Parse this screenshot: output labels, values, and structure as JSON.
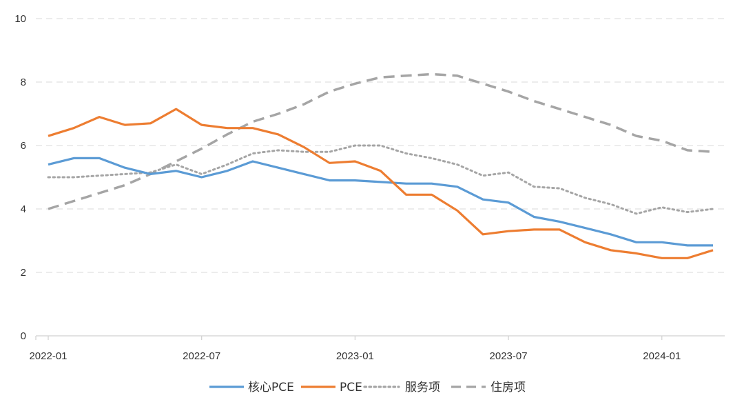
{
  "chart_data": {
    "type": "line",
    "title": "",
    "xlabel": "",
    "ylabel": "",
    "ylim": [
      0,
      10
    ],
    "yticks": [
      0,
      2,
      4,
      6,
      8,
      10
    ],
    "grid": true,
    "legend_position": "bottom",
    "x": [
      "2022-01",
      "2022-02",
      "2022-03",
      "2022-04",
      "2022-05",
      "2022-06",
      "2022-07",
      "2022-08",
      "2022-09",
      "2022-10",
      "2022-11",
      "2022-12",
      "2023-01",
      "2023-02",
      "2023-03",
      "2023-04",
      "2023-05",
      "2023-06",
      "2023-07",
      "2023-08",
      "2023-09",
      "2023-10",
      "2023-11",
      "2023-12",
      "2024-01",
      "2024-02",
      "2024-03"
    ],
    "xtick_labels": [
      {
        "index": 0,
        "label": "2022-01"
      },
      {
        "index": 6,
        "label": "2022-07"
      },
      {
        "index": 12,
        "label": "2023-01"
      },
      {
        "index": 18,
        "label": "2023-07"
      },
      {
        "index": 24,
        "label": "2024-01"
      }
    ],
    "series": [
      {
        "name": "核心PCE",
        "color": "#5b9bd5",
        "style": "solid",
        "values": [
          5.4,
          5.6,
          5.6,
          5.3,
          5.1,
          5.2,
          5.0,
          5.2,
          5.5,
          5.3,
          5.1,
          4.9,
          4.9,
          4.85,
          4.8,
          4.8,
          4.7,
          4.3,
          4.2,
          3.75,
          3.6,
          3.4,
          3.2,
          2.95,
          2.95,
          2.85,
          2.85
        ]
      },
      {
        "name": "PCE",
        "color": "#ed7d31",
        "style": "solid",
        "values": [
          6.3,
          6.55,
          6.9,
          6.65,
          6.7,
          7.15,
          6.65,
          6.55,
          6.55,
          6.35,
          5.95,
          5.45,
          5.5,
          5.2,
          4.45,
          4.45,
          3.95,
          3.2,
          3.3,
          3.35,
          3.35,
          2.95,
          2.7,
          2.6,
          2.45,
          2.45,
          2.7
        ]
      },
      {
        "name": "服务项",
        "color": "#a5a5a5",
        "style": "dotted",
        "values": [
          5.0,
          5.0,
          5.05,
          5.1,
          5.15,
          5.4,
          5.1,
          5.4,
          5.75,
          5.85,
          5.8,
          5.8,
          6.0,
          6.0,
          5.75,
          5.6,
          5.4,
          5.05,
          5.15,
          4.7,
          4.65,
          4.35,
          4.15,
          3.85,
          4.05,
          3.9,
          4.0
        ]
      },
      {
        "name": "住房项",
        "color": "#a5a5a5",
        "style": "dashed",
        "values": [
          4.0,
          4.25,
          4.5,
          4.75,
          5.1,
          5.5,
          5.9,
          6.35,
          6.75,
          7.0,
          7.3,
          7.7,
          7.95,
          8.15,
          8.2,
          8.25,
          8.2,
          7.95,
          7.7,
          7.4,
          7.15,
          6.9,
          6.65,
          6.3,
          6.15,
          5.85,
          5.8
        ]
      }
    ]
  }
}
